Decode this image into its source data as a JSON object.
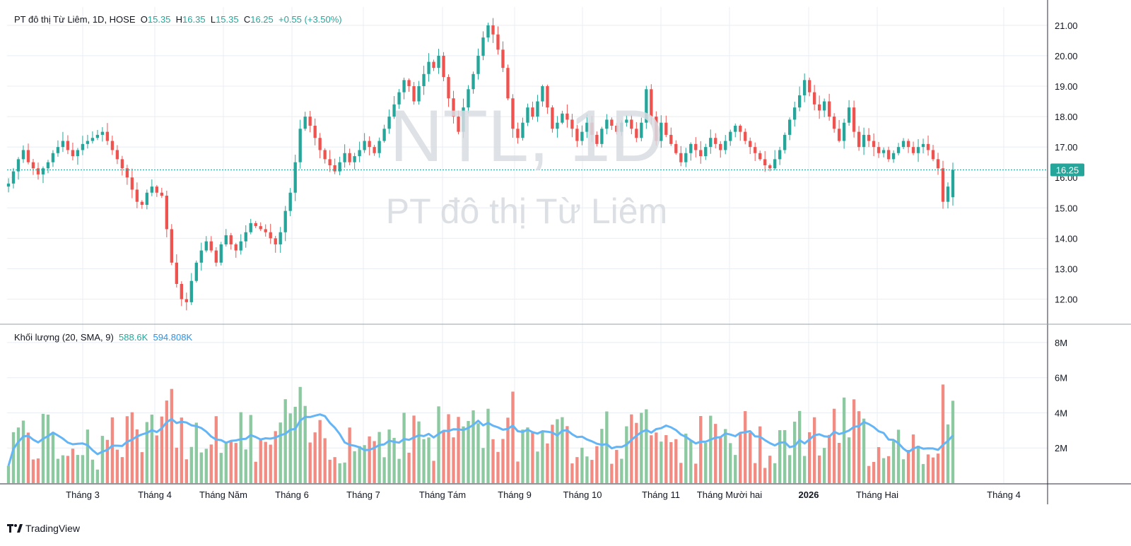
{
  "header": {
    "symbol_title": "PT đô thị Từ Liêm, 1D, HOSE",
    "open_key": "O",
    "open": "15.35",
    "high_key": "H",
    "high": "16.35",
    "low_key": "L",
    "low": "15.35",
    "close_key": "C",
    "close": "16.25",
    "change": "+0.55 (+3.50%)"
  },
  "watermark": {
    "ticker": "NTL, 1D",
    "name": "PT đô thị Từ Liêm"
  },
  "volume_legend": {
    "title": "Khối lượng (20, SMA, 9)",
    "volume": "588.6K",
    "sma": "594.808K"
  },
  "last_price_label": "16.25",
  "footer": {
    "brand": "TradingView"
  },
  "colors": {
    "up": "#26a69a",
    "down": "#ef5350",
    "up_vol": "#8cc9a0",
    "down_vol": "#f28b82",
    "sma": "#64b5f6",
    "grid": "#e8eef3",
    "text": "#131722"
  },
  "chart_data": [
    {
      "type": "candlestick",
      "title": "PT đô thị Từ Liêm, 1D, HOSE",
      "ylim": [
        11.2,
        21.6
      ],
      "y_ticks": [
        "21.00",
        "20.00",
        "19.00",
        "18.00",
        "17.00",
        "16.00",
        "15.00",
        "14.00",
        "13.00",
        "12.00"
      ],
      "x_ticks": [
        "Tháng 3",
        "Tháng 4",
        "Tháng Năm",
        "Tháng 6",
        "Tháng 7",
        "Tháng Tám",
        "Tháng 9",
        "Tháng 10",
        "Tháng 11",
        "Tháng Mười hai",
        "2026",
        "Tháng Hai",
        "Tháng 4"
      ],
      "grid": true,
      "legend": "top-left",
      "close_series": [
        15.8,
        16.2,
        16.6,
        16.9,
        16.5,
        16.3,
        16.1,
        16.3,
        16.5,
        16.8,
        17.0,
        17.2,
        16.9,
        16.7,
        16.9,
        17.1,
        17.2,
        17.3,
        17.4,
        17.5,
        17.2,
        16.9,
        16.6,
        16.3,
        16.0,
        15.6,
        15.2,
        15.1,
        15.5,
        15.7,
        15.5,
        15.4,
        14.3,
        13.2,
        12.5,
        12.0,
        11.9,
        12.6,
        13.2,
        13.6,
        13.9,
        13.6,
        13.2,
        13.8,
        14.1,
        13.8,
        13.6,
        13.9,
        14.2,
        14.5,
        14.4,
        14.3,
        14.2,
        14.0,
        13.8,
        14.2,
        14.9,
        15.5,
        16.5,
        17.6,
        18.0,
        17.7,
        17.3,
        16.9,
        16.6,
        16.4,
        16.2,
        16.5,
        16.8,
        16.5,
        16.7,
        16.9,
        17.2,
        17.0,
        16.8,
        17.2,
        17.6,
        18.0,
        18.4,
        18.8,
        19.2,
        19.0,
        18.5,
        19.0,
        19.4,
        19.8,
        19.6,
        20.0,
        19.3,
        18.6,
        18.0,
        17.5,
        18.3,
        18.9,
        19.4,
        20.0,
        20.6,
        21.0,
        20.7,
        20.2,
        19.6,
        18.6,
        17.6,
        17.3,
        17.8,
        18.3,
        18.0,
        18.5,
        19.0,
        18.3,
        17.6,
        17.8,
        18.1,
        17.9,
        17.6,
        17.2,
        17.5,
        17.8,
        17.4,
        17.1,
        17.6,
        17.9,
        17.7,
        17.5,
        17.8,
        17.9,
        17.6,
        17.3,
        17.8,
        18.9,
        18.0,
        17.2,
        17.8,
        17.4,
        17.1,
        16.8,
        16.5,
        16.8,
        17.1,
        16.9,
        16.7,
        17.0,
        17.3,
        17.1,
        16.9,
        17.2,
        17.5,
        17.7,
        17.5,
        17.2,
        17.0,
        16.8,
        16.6,
        16.4,
        16.3,
        16.6,
        16.9,
        17.4,
        17.9,
        18.3,
        18.7,
        19.2,
        18.8,
        18.4,
        18.2,
        18.5,
        18.0,
        17.6,
        17.2,
        17.8,
        18.3,
        17.5,
        17.0,
        17.4,
        17.2,
        17.0,
        16.8,
        16.9,
        16.6,
        16.8,
        17.0,
        17.2,
        17.0,
        16.8,
        17.0,
        17.1,
        16.9,
        16.6,
        16.3,
        15.2,
        15.7,
        16.25
      ],
      "volume_max": 8600000,
      "volume_ticks": [
        "8M",
        "6M",
        "4M",
        "2M"
      ]
    }
  ]
}
